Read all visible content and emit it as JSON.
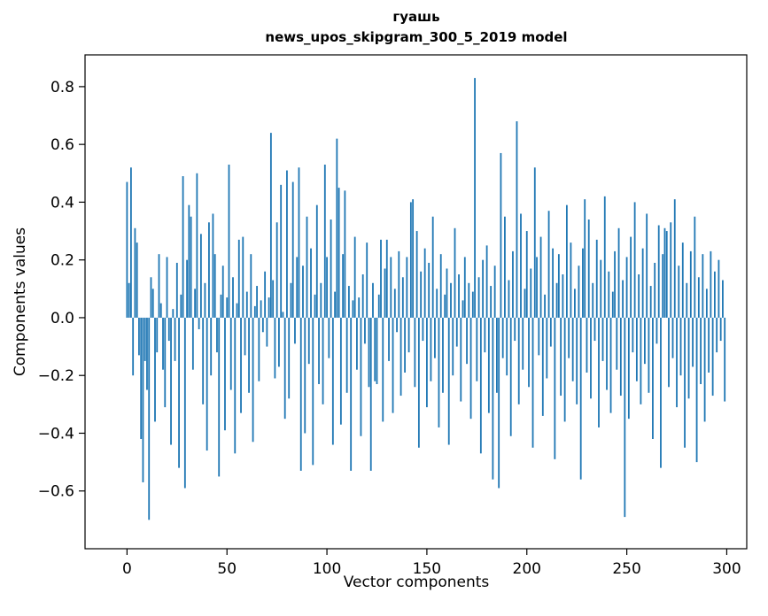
{
  "figure": {
    "title_line1": "гуашь",
    "title_line2": "news_upos_skipgram_300_5_2019 model"
  },
  "chart_data": {
    "type": "bar",
    "title": "гуашь",
    "subtitle": "news_upos_skipgram_300_5_2019 model",
    "xlabel": "Vector components",
    "ylabel": "Components values",
    "legend": null,
    "grid": false,
    "bar_color": "#1f77b4",
    "xlim": [
      -21,
      310
    ],
    "ylim": [
      -0.8,
      0.91
    ],
    "xticks": [
      0,
      50,
      100,
      150,
      200,
      250,
      300
    ],
    "yticks": [
      -0.6,
      -0.4,
      -0.2,
      0.0,
      0.2,
      0.4,
      0.6,
      0.8
    ],
    "x_start": 0,
    "values": [
      0.47,
      0.12,
      0.52,
      -0.2,
      0.31,
      0.26,
      -0.13,
      -0.42,
      -0.57,
      -0.15,
      -0.25,
      -0.7,
      0.14,
      0.1,
      -0.36,
      -0.12,
      0.22,
      0.05,
      -0.18,
      -0.31,
      0.21,
      -0.08,
      -0.44,
      0.03,
      -0.15,
      0.19,
      -0.52,
      0.08,
      0.49,
      -0.59,
      0.2,
      0.39,
      0.35,
      -0.18,
      0.1,
      0.5,
      -0.04,
      0.29,
      -0.3,
      0.12,
      -0.46,
      0.33,
      -0.2,
      0.36,
      0.22,
      -0.12,
      -0.55,
      0.08,
      0.18,
      -0.39,
      0.07,
      0.53,
      -0.25,
      0.14,
      -0.47,
      0.05,
      0.27,
      -0.33,
      0.28,
      -0.13,
      0.09,
      -0.26,
      0.22,
      -0.43,
      0.04,
      0.11,
      -0.22,
      0.06,
      -0.05,
      0.16,
      -0.1,
      0.07,
      0.64,
      0.13,
      -0.21,
      0.33,
      -0.17,
      0.46,
      0.02,
      -0.35,
      0.51,
      -0.28,
      0.12,
      0.47,
      -0.09,
      0.21,
      0.52,
      -0.53,
      0.18,
      -0.4,
      0.35,
      -0.16,
      0.24,
      -0.51,
      0.08,
      0.39,
      -0.23,
      0.12,
      -0.3,
      0.53,
      0.21,
      -0.14,
      0.34,
      -0.44,
      0.09,
      0.62,
      0.45,
      -0.37,
      0.22,
      0.44,
      -0.26,
      0.11,
      -0.53,
      0.06,
      0.28,
      -0.18,
      0.07,
      -0.41,
      0.15,
      -0.09,
      0.26,
      -0.24,
      -0.53,
      0.12,
      -0.22,
      -0.23,
      0.08,
      0.27,
      -0.36,
      0.17,
      0.27,
      -0.15,
      0.21,
      -0.33,
      0.1,
      -0.05,
      0.23,
      -0.27,
      0.14,
      -0.19,
      0.21,
      -0.12,
      0.4,
      0.41,
      -0.24,
      0.3,
      -0.45,
      0.16,
      -0.08,
      0.24,
      -0.31,
      0.19,
      -0.22,
      0.35,
      -0.14,
      0.1,
      -0.38,
      0.22,
      -0.26,
      0.08,
      0.17,
      -0.44,
      0.12,
      -0.2,
      0.31,
      -0.1,
      0.15,
      -0.29,
      0.06,
      0.21,
      -0.16,
      0.12,
      -0.35,
      0.09,
      0.83,
      -0.22,
      0.14,
      -0.47,
      0.2,
      -0.12,
      0.25,
      -0.33,
      0.11,
      -0.56,
      0.18,
      -0.26,
      -0.59,
      0.57,
      -0.14,
      0.35,
      -0.2,
      0.13,
      -0.41,
      0.23,
      -0.08,
      0.68,
      -0.3,
      0.36,
      -0.18,
      0.1,
      0.3,
      -0.24,
      0.17,
      -0.45,
      0.52,
      0.21,
      -0.13,
      0.28,
      -0.34,
      0.08,
      -0.21,
      0.37,
      -0.1,
      0.24,
      -0.49,
      0.12,
      0.22,
      -0.27,
      0.15,
      -0.36,
      0.39,
      -0.14,
      0.26,
      -0.22,
      0.1,
      -0.3,
      0.18,
      -0.56,
      0.24,
      0.41,
      -0.19,
      0.34,
      -0.28,
      0.12,
      -0.08,
      0.27,
      -0.38,
      0.2,
      -0.15,
      0.42,
      -0.25,
      0.16,
      -0.33,
      0.09,
      0.23,
      -0.18,
      0.31,
      -0.27,
      0.13,
      -0.69,
      0.21,
      -0.35,
      0.28,
      -0.12,
      0.4,
      -0.22,
      0.15,
      -0.3,
      0.24,
      -0.16,
      0.36,
      -0.26,
      0.11,
      -0.42,
      0.19,
      -0.09,
      0.32,
      -0.52,
      0.22,
      0.31,
      0.3,
      -0.24,
      0.33,
      -0.14,
      0.41,
      -0.31,
      0.18,
      -0.2,
      0.26,
      -0.45,
      0.12,
      -0.28,
      0.23,
      -0.17,
      0.35,
      -0.5,
      0.14,
      -0.23,
      0.22,
      -0.36,
      0.1,
      -0.19,
      0.23,
      -0.27,
      0.16,
      -0.12,
      0.2,
      -0.08,
      0.13,
      -0.29
    ]
  }
}
